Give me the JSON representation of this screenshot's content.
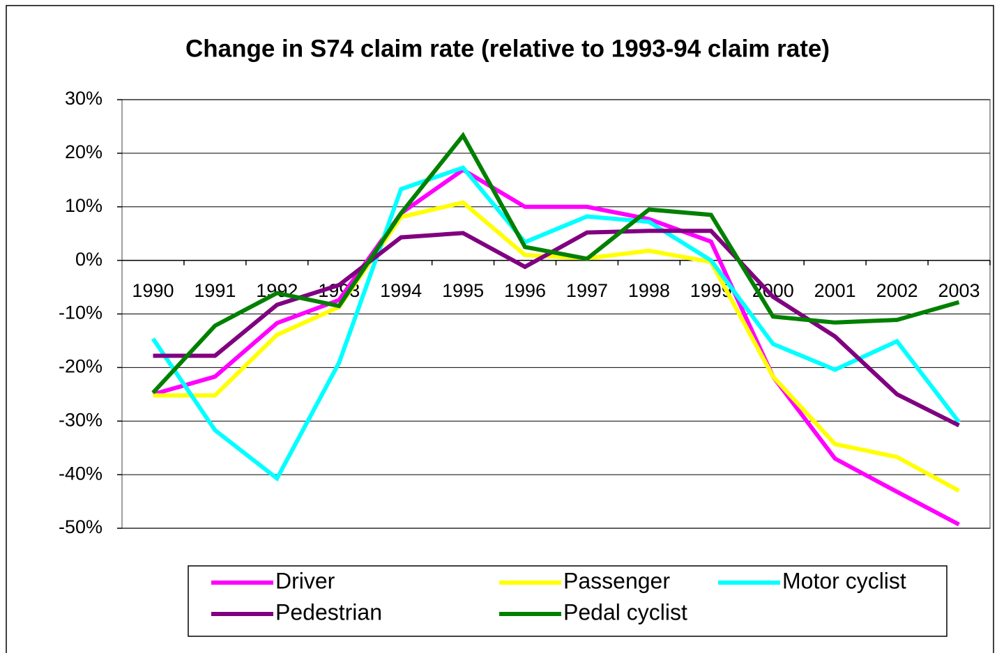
{
  "chart_data": {
    "type": "line",
    "title": "Change in S74 claim rate (relative to 1993-94 claim rate)",
    "categories": [
      "1990",
      "1991",
      "1992",
      "1993",
      "1994",
      "1995",
      "1996",
      "1997",
      "1998",
      "1999",
      "2000",
      "2001",
      "2002",
      "2003"
    ],
    "ylim": [
      -50,
      30
    ],
    "yticks": [
      {
        "value": -50,
        "label": "-50%"
      },
      {
        "value": -40,
        "label": "-40%"
      },
      {
        "value": -30,
        "label": "-30%"
      },
      {
        "value": -20,
        "label": "-20%"
      },
      {
        "value": -10,
        "label": "-10%"
      },
      {
        "value": 0,
        "label": "0%"
      },
      {
        "value": 10,
        "label": "10%"
      },
      {
        "value": 20,
        "label": "20%"
      },
      {
        "value": 30,
        "label": "30%"
      }
    ],
    "grid": true,
    "legend": "bottom",
    "series": [
      {
        "name": "Driver",
        "color": "#ff00ff",
        "values": [
          -25,
          -21.7,
          -11.7,
          -7.4,
          8.8,
          16.9,
          10,
          10,
          7.7,
          3.5,
          -21.7,
          -37,
          -43.2,
          -49.3
        ]
      },
      {
        "name": "Passenger",
        "color": "#ffff00",
        "values": [
          -25.2,
          -25.2,
          -13.9,
          -8.7,
          8.1,
          10.8,
          1,
          0.4,
          1.8,
          -0.3,
          -21.7,
          -34.3,
          -36.7,
          -43
        ]
      },
      {
        "name": "Motor cyclist",
        "color": "#00ffff",
        "values": [
          -14.6,
          -31.7,
          -40.7,
          -19.1,
          13.3,
          17.3,
          3.4,
          8.2,
          7.2,
          0,
          -15.6,
          -20.4,
          -15.1,
          -30.2
        ]
      },
      {
        "name": "Pedestrian",
        "color": "#800080",
        "values": [
          -17.8,
          -17.8,
          -8.3,
          -4.6,
          4.3,
          5.1,
          -1.2,
          5.2,
          5.5,
          5.5,
          -6.8,
          -14.2,
          -25,
          -30.8
        ]
      },
      {
        "name": "Pedal cyclist",
        "color": "#008000",
        "values": [
          -24.7,
          -12.2,
          -6.1,
          -8.5,
          8.8,
          23.3,
          2.5,
          0.3,
          9.5,
          8.5,
          -10.5,
          -11.6,
          -11.1,
          -7.8
        ]
      }
    ]
  }
}
